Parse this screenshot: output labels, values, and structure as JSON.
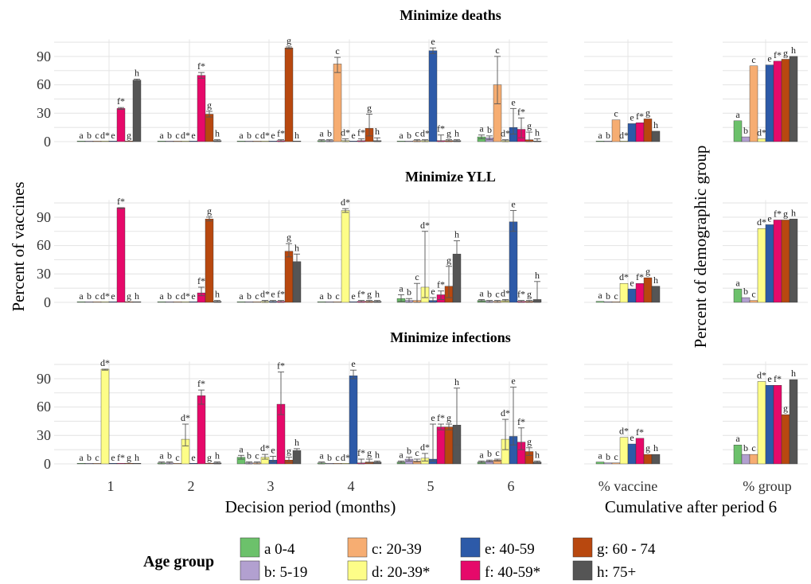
{
  "colors": {
    "a": "#6cc16b",
    "b": "#b2a0d0",
    "c": "#f6ad72",
    "d": "#fdfd88",
    "e": "#2d5aa8",
    "f": "#e6096a",
    "g": "#b8480f",
    "h": "#555555"
  },
  "labels": {
    "panels": [
      "Minimize deaths",
      "Minimize YLL",
      "Minimize infections"
    ],
    "ylabel_left": "Percent of vaccines",
    "ylabel_right": "Percent of demographic group",
    "xlabel_left": "Decision period (months)",
    "xlabel_right": "Cumulative after period 6",
    "xcat_vaccine": "% vaccine",
    "xcat_group": "% group",
    "periods": [
      "1",
      "2",
      "3",
      "4",
      "5",
      "6"
    ],
    "yticks": [
      "0",
      "30",
      "60",
      "90"
    ]
  },
  "legend": {
    "title": "Age group",
    "items": [
      {
        "key": "a",
        "label": "a 0-4"
      },
      {
        "key": "b",
        "label": "b: 5-19"
      },
      {
        "key": "c",
        "label": "c: 20-39"
      },
      {
        "key": "d",
        "label": "d: 20-39*"
      },
      {
        "key": "e",
        "label": "e: 40-59"
      },
      {
        "key": "f",
        "label": "f: 40-59*"
      },
      {
        "key": "g",
        "label": "g: 60 - 74"
      },
      {
        "key": "h",
        "label": "h: 75+"
      }
    ]
  },
  "chart_data": {
    "type": "bar",
    "series_keys": [
      "a",
      "b",
      "c",
      "d",
      "e",
      "f",
      "g",
      "h"
    ],
    "bar_labels": [
      "a",
      "b",
      "c",
      "d*",
      "e",
      "f*",
      "g",
      "h"
    ],
    "ylim": [
      0,
      105
    ],
    "panels": [
      {
        "title": "Minimize deaths",
        "periods": [
          {
            "values": [
              0,
              0,
              0,
              0,
              0,
              35,
              0,
              65
            ],
            "err_low": [
              0,
              0,
              0,
              0,
              0,
              34,
              0,
              64
            ],
            "err_high": [
              0,
              0,
              0,
              0,
              0,
              36,
              0,
              66
            ]
          },
          {
            "values": [
              0,
              0,
              0,
              0,
              0,
              70,
              29,
              1
            ],
            "err_low": [
              0,
              0,
              0,
              0,
              0,
              67,
              26,
              0
            ],
            "err_high": [
              0,
              0,
              0,
              0,
              0,
              73,
              32,
              2
            ]
          },
          {
            "values": [
              0,
              0,
              0,
              0,
              0,
              1,
              99,
              0
            ],
            "err_low": [
              0,
              0,
              0,
              0,
              0,
              0,
              98,
              0
            ],
            "err_high": [
              0,
              0,
              0,
              0,
              0,
              2,
              100,
              0
            ]
          },
          {
            "values": [
              1,
              1,
              82,
              1,
              0,
              1,
              14,
              1
            ],
            "err_low": [
              0,
              0,
              73,
              0,
              0,
              0,
              6,
              0
            ],
            "err_high": [
              2,
              2,
              89,
              3,
              0,
              3,
              29,
              4
            ]
          },
          {
            "values": [
              0,
              0,
              1,
              1,
              96,
              1,
              1,
              1
            ],
            "err_low": [
              0,
              0,
              0,
              0,
              93,
              0,
              0,
              0
            ],
            "err_high": [
              0,
              0,
              2,
              2,
              99,
              7,
              2,
              2
            ]
          },
          {
            "values": [
              5,
              4,
              60,
              1,
              15,
              13,
              2,
              0
            ],
            "err_low": [
              3,
              2,
              40,
              0,
              8,
              4,
              0,
              0
            ],
            "err_high": [
              7,
              6,
              90,
              2,
              35,
              25,
              10,
              3
            ]
          }
        ],
        "vaccine": [
          0,
          0,
          23,
          0,
          19,
          20,
          24,
          11
        ],
        "group": [
          22,
          5,
          80,
          3,
          81,
          85,
          87,
          90
        ]
      },
      {
        "title": "Minimize YLL",
        "periods": [
          {
            "values": [
              0,
              0,
              0,
              0,
              0,
              100,
              0,
              0
            ],
            "err_low": [
              0,
              0,
              0,
              0,
              0,
              99,
              0,
              0
            ],
            "err_high": [
              0,
              0,
              0,
              0,
              0,
              100,
              0,
              0
            ]
          },
          {
            "values": [
              0,
              0,
              0,
              0,
              0,
              10,
              88,
              1
            ],
            "err_low": [
              0,
              0,
              0,
              0,
              0,
              7,
              86,
              0
            ],
            "err_high": [
              0,
              0,
              0,
              0,
              0,
              16,
              90,
              2
            ]
          },
          {
            "values": [
              0,
              0,
              0,
              1,
              1,
              1,
              54,
              43
            ],
            "err_low": [
              0,
              0,
              0,
              0,
              0,
              0,
              48,
              35
            ],
            "err_high": [
              0,
              0,
              0,
              2,
              2,
              2,
              62,
              51
            ]
          },
          {
            "values": [
              0,
              0,
              0,
              97,
              0,
              1,
              1,
              1
            ],
            "err_low": [
              0,
              0,
              0,
              95,
              0,
              0,
              0,
              0
            ],
            "err_high": [
              0,
              0,
              0,
              99,
              0,
              2,
              2,
              2
            ]
          },
          {
            "values": [
              4,
              2,
              2,
              16,
              2,
              8,
              17,
              51
            ],
            "err_low": [
              1,
              0,
              0,
              5,
              0,
              3,
              5,
              35
            ],
            "err_high": [
              8,
              4,
              20,
              75,
              5,
              12,
              38,
              65
            ]
          },
          {
            "values": [
              2,
              1,
              1,
              2,
              85,
              1,
              1,
              3
            ],
            "err_low": [
              1,
              0,
              0,
              1,
              75,
              0,
              0,
              0
            ],
            "err_high": [
              3,
              2,
              2,
              3,
              97,
              2,
              2,
              22
            ]
          }
        ],
        "vaccine": [
          1,
          0,
          0,
          20,
          14,
          20,
          26,
          17
        ],
        "group": [
          14,
          5,
          2,
          78,
          82,
          87,
          87,
          88
        ]
      },
      {
        "title": "Minimize infections",
        "periods": [
          {
            "values": [
              0,
              0,
              0,
              100,
              0,
              0,
              0,
              0
            ],
            "err_low": [
              0,
              0,
              0,
              99,
              0,
              0,
              0,
              0
            ],
            "err_high": [
              0,
              0,
              0,
              100,
              0,
              0,
              0,
              0
            ]
          },
          {
            "values": [
              1,
              1,
              0,
              26,
              0,
              72,
              0,
              1
            ],
            "err_low": [
              0,
              0,
              0,
              19,
              0,
              63,
              0,
              0
            ],
            "err_high": [
              2,
              2,
              0,
              42,
              0,
              78,
              0,
              2
            ]
          },
          {
            "values": [
              7,
              1,
              1,
              7,
              4,
              63,
              4,
              14
            ],
            "err_low": [
              5,
              0,
              0,
              5,
              2,
              52,
              2,
              12
            ],
            "err_high": [
              9,
              2,
              2,
              10,
              8,
              97,
              7,
              16
            ]
          },
          {
            "values": [
              1,
              0,
              0,
              0,
              93,
              1,
              2,
              2
            ],
            "err_low": [
              0,
              0,
              0,
              0,
              90,
              0,
              1,
              1
            ],
            "err_high": [
              2,
              0,
              0,
              0,
              99,
              5,
              5,
              3
            ]
          },
          {
            "values": [
              2,
              5,
              3,
              6,
              5,
              39,
              39,
              41
            ],
            "err_low": [
              1,
              3,
              2,
              3,
              3,
              36,
              36,
              20
            ],
            "err_high": [
              3,
              7,
              5,
              11,
              42,
              42,
              42,
              80
            ]
          },
          {
            "values": [
              2,
              3,
              4,
              26,
              29,
              23,
              13,
              2
            ],
            "err_low": [
              1,
              2,
              3,
              15,
              20,
              15,
              9,
              1
            ],
            "err_high": [
              3,
              4,
              5,
              47,
              81,
              38,
              17,
              3
            ]
          }
        ],
        "vaccine": [
          2,
          1,
          1,
          28,
          21,
          27,
          10,
          10
        ],
        "group": [
          20,
          10,
          10,
          87,
          83,
          83,
          52,
          89
        ]
      }
    ]
  }
}
